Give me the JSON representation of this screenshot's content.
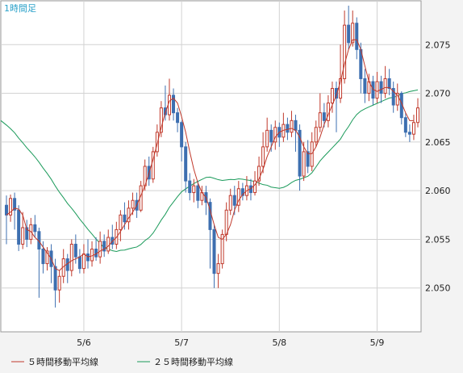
{
  "chart_data": {
    "type": "candlestick",
    "title": "1時間足",
    "x_ticks": [
      "5/6",
      "5/7",
      "5/8",
      "5/9"
    ],
    "y_ticks": [
      "2.050",
      "2.055",
      "2.060",
      "2.065",
      "2.070",
      "2.075"
    ],
    "ylim": [
      2.0455,
      2.0795
    ],
    "grid": true,
    "colors": {
      "up": "#c0392b",
      "down": "#3d6fb0",
      "ma5": "#c0392b",
      "ma25": "#1a9a5a"
    },
    "legend": {
      "position": "bottom-left",
      "items": [
        {
          "name": "５時間移動平均線",
          "color": "#c0392b"
        },
        {
          "name": "２５時間移動平均線",
          "color": "#1a9a5a"
        }
      ]
    },
    "candles": [
      [
        2.0585,
        2.0575,
        2.0595,
        2.0545
      ],
      [
        2.0575,
        2.0592,
        2.0596,
        2.0568
      ],
      [
        2.0592,
        2.058,
        2.0598,
        2.056
      ],
      [
        2.058,
        2.0545,
        2.0585,
        2.0538
      ],
      [
        2.0545,
        2.0562,
        2.0578,
        2.054
      ],
      [
        2.0562,
        2.055,
        2.057,
        2.0542
      ],
      [
        2.055,
        2.0565,
        2.0572,
        2.0545
      ],
      [
        2.0565,
        2.0558,
        2.0575,
        2.0552
      ],
      [
        2.0558,
        2.054,
        2.0562,
        2.049
      ],
      [
        2.054,
        2.0525,
        2.0548,
        2.0515
      ],
      [
        2.0525,
        2.0538,
        2.0542,
        2.0518
      ],
      [
        2.0538,
        2.0522,
        2.0545,
        2.0505
      ],
      [
        2.0522,
        2.0498,
        2.053,
        2.048
      ],
      [
        2.0498,
        2.0512,
        2.0518,
        2.0485
      ],
      [
        2.0512,
        2.053,
        2.054,
        2.0505
      ],
      [
        2.053,
        2.0518,
        2.0535,
        2.0505
      ],
      [
        2.0518,
        2.0545,
        2.055,
        2.0512
      ],
      [
        2.0545,
        2.0532,
        2.0555,
        2.0525
      ],
      [
        2.0532,
        2.052,
        2.054,
        2.0515
      ],
      [
        2.052,
        2.0535,
        2.0545,
        2.0515
      ],
      [
        2.0535,
        2.0528,
        2.055,
        2.052
      ],
      [
        2.0528,
        2.054,
        2.0548,
        2.0522
      ],
      [
        2.054,
        2.0532,
        2.0552,
        2.0528
      ],
      [
        2.0532,
        2.0548,
        2.0558,
        2.0525
      ],
      [
        2.0548,
        2.0538,
        2.0555,
        2.0532
      ],
      [
        2.0538,
        2.0552,
        2.056,
        2.0535
      ],
      [
        2.0552,
        2.0545,
        2.0565,
        2.054
      ],
      [
        2.0545,
        2.056,
        2.0568,
        2.054
      ],
      [
        2.056,
        2.0575,
        2.058,
        2.0548
      ],
      [
        2.0575,
        2.0568,
        2.0588,
        2.056
      ],
      [
        2.0568,
        2.0582,
        2.059,
        2.056
      ],
      [
        2.0582,
        2.059,
        2.0598,
        2.0575
      ],
      [
        2.059,
        2.058,
        2.0598,
        2.0572
      ],
      [
        2.058,
        2.0605,
        2.061,
        2.0578
      ],
      [
        2.0605,
        2.0625,
        2.0632,
        2.06
      ],
      [
        2.0625,
        2.0612,
        2.0635,
        2.0605
      ],
      [
        2.0612,
        2.064,
        2.0645,
        2.0608
      ],
      [
        2.064,
        2.066,
        2.0668,
        2.0635
      ],
      [
        2.066,
        2.0685,
        2.0692,
        2.0655
      ],
      [
        2.0685,
        2.0678,
        2.0708,
        2.0672
      ],
      [
        2.0678,
        2.0698,
        2.0715,
        2.0672
      ],
      [
        2.0698,
        2.068,
        2.0705,
        2.0672
      ],
      [
        2.068,
        2.067,
        2.0685,
        2.066
      ],
      [
        2.067,
        2.0645,
        2.0672,
        2.063
      ],
      [
        2.0645,
        2.061,
        2.065,
        2.0598
      ],
      [
        2.061,
        2.0598,
        2.0618,
        2.059
      ],
      [
        2.0598,
        2.0605,
        2.0612,
        2.0588
      ],
      [
        2.0605,
        2.059,
        2.061,
        2.0582
      ],
      [
        2.059,
        2.0598,
        2.0605,
        2.0585
      ],
      [
        2.0598,
        2.0588,
        2.0605,
        2.0575
      ],
      [
        2.0588,
        2.056,
        2.0592,
        2.052
      ],
      [
        2.056,
        2.0515,
        2.0565,
        2.05
      ],
      [
        2.0515,
        2.0525,
        2.0535,
        2.05
      ],
      [
        2.0525,
        2.0555,
        2.056,
        2.052
      ],
      [
        2.0555,
        2.058,
        2.0588,
        2.0548
      ],
      [
        2.058,
        2.0595,
        2.0602,
        2.0575
      ],
      [
        2.0595,
        2.0585,
        2.0605,
        2.0575
      ],
      [
        2.0585,
        2.0602,
        2.061,
        2.0578
      ],
      [
        2.0602,
        2.0595,
        2.0608,
        2.059
      ],
      [
        2.0595,
        2.0605,
        2.0615,
        2.059
      ],
      [
        2.0605,
        2.0598,
        2.0612,
        2.059
      ],
      [
        2.0598,
        2.061,
        2.062,
        2.0595
      ],
      [
        2.061,
        2.0625,
        2.0635,
        2.0605
      ],
      [
        2.0625,
        2.0645,
        2.066,
        2.0618
      ],
      [
        2.0645,
        2.0662,
        2.0675,
        2.064
      ],
      [
        2.0662,
        2.065,
        2.0668,
        2.064
      ],
      [
        2.065,
        2.0665,
        2.0672,
        2.0642
      ],
      [
        2.0665,
        2.0655,
        2.067,
        2.0645
      ],
      [
        2.0655,
        2.0668,
        2.068,
        2.065
      ],
      [
        2.0668,
        2.066,
        2.0675,
        2.0652
      ],
      [
        2.066,
        2.0672,
        2.0682,
        2.0655
      ],
      [
        2.0672,
        2.0662,
        2.0678,
        2.064
      ],
      [
        2.0662,
        2.0615,
        2.0668,
        2.06
      ],
      [
        2.0615,
        2.064,
        2.065,
        2.061
      ],
      [
        2.064,
        2.0625,
        2.0652,
        2.0618
      ],
      [
        2.0625,
        2.065,
        2.066,
        2.062
      ],
      [
        2.065,
        2.0665,
        2.0672,
        2.0645
      ],
      [
        2.0665,
        2.068,
        2.07,
        2.066
      ],
      [
        2.068,
        2.0672,
        2.069,
        2.0665
      ],
      [
        2.0672,
        2.069,
        2.0698,
        2.0665
      ],
      [
        2.069,
        2.0705,
        2.0712,
        2.068
      ],
      [
        2.0705,
        2.0695,
        2.0712,
        2.066
      ],
      [
        2.0695,
        2.0715,
        2.075,
        2.069
      ],
      [
        2.0715,
        2.077,
        2.0785,
        2.071
      ],
      [
        2.077,
        2.0752,
        2.079,
        2.0745
      ],
      [
        2.0752,
        2.0772,
        2.0785,
        2.0748
      ],
      [
        2.0772,
        2.0745,
        2.0778,
        2.0735
      ],
      [
        2.0745,
        2.0715,
        2.0752,
        2.07
      ],
      [
        2.0715,
        2.07,
        2.0725,
        2.069
      ],
      [
        2.07,
        2.0712,
        2.072,
        2.0692
      ],
      [
        2.0712,
        2.0695,
        2.0718,
        2.0688
      ],
      [
        2.0695,
        2.0712,
        2.0722,
        2.069
      ],
      [
        2.0712,
        2.07,
        2.0718,
        2.069
      ],
      [
        2.07,
        2.0715,
        2.0728,
        2.0695
      ],
      [
        2.0715,
        2.0705,
        2.0725,
        2.0698
      ],
      [
        2.0705,
        2.0688,
        2.0712,
        2.068
      ],
      [
        2.0688,
        2.07,
        2.071,
        2.0682
      ],
      [
        2.07,
        2.0675,
        2.0702,
        2.0668
      ],
      [
        2.0675,
        2.066,
        2.068,
        2.0655
      ],
      [
        2.066,
        2.0658,
        2.0668,
        2.065
      ],
      [
        2.0658,
        2.067,
        2.0678,
        2.0652
      ],
      [
        2.067,
        2.0685,
        2.0695,
        2.0665
      ]
    ],
    "ma5": [
      2.0575,
      2.0578,
      2.0582,
      2.0581,
      2.0575,
      2.056,
      2.0558,
      2.0552,
      2.0548,
      2.0542,
      2.0536,
      2.053,
      2.052,
      2.0518,
      2.0522,
      2.0525,
      2.0528,
      2.053,
      2.0532,
      2.0535,
      2.0532,
      2.0533,
      2.0535,
      2.0538,
      2.054,
      2.0543,
      2.0548,
      2.0552,
      2.0558,
      2.0565,
      2.0572,
      2.0578,
      2.0585,
      2.0595,
      2.0605,
      2.0618,
      2.0632,
      2.0648,
      2.0665,
      2.068,
      2.0692,
      2.0695,
      2.069,
      2.0676,
      2.066,
      2.064,
      2.0622,
      2.0608,
      2.0598,
      2.0593,
      2.058,
      2.0565,
      2.0552,
      2.055,
      2.0555,
      2.0565,
      2.058,
      2.059,
      2.0596,
      2.06,
      2.0602,
      2.0606,
      2.0612,
      2.0622,
      2.0635,
      2.0645,
      2.0655,
      2.066,
      2.0662,
      2.0663,
      2.0664,
      2.0662,
      2.0655,
      2.0645,
      2.0638,
      2.0638,
      2.0645,
      2.0655,
      2.0668,
      2.0678,
      2.0688,
      2.0698,
      2.0712,
      2.073,
      2.0745,
      2.0755,
      2.0755,
      2.0745,
      2.0728,
      2.0712,
      2.0704,
      2.0702,
      2.0704,
      2.0706,
      2.0706,
      2.0702,
      2.0698,
      2.069,
      2.068,
      2.0672,
      2.0672
    ]
  }
}
